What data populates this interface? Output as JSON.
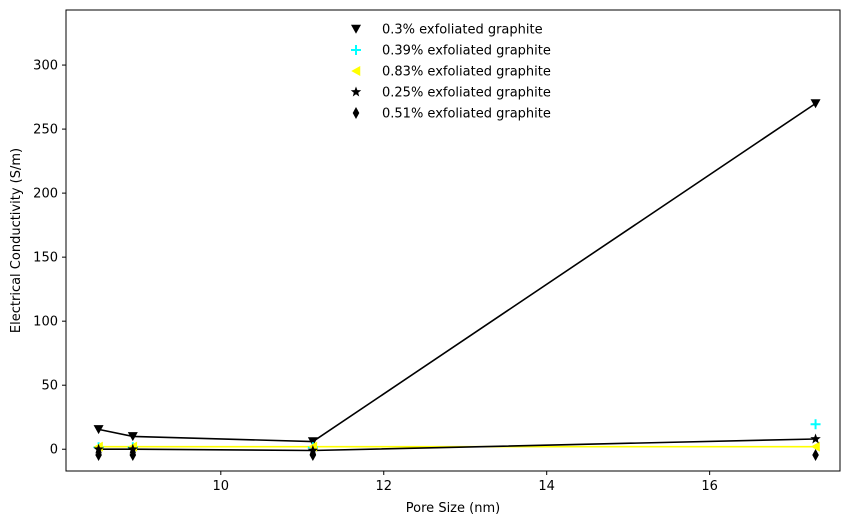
{
  "chart_data": {
    "type": "scatter",
    "xlabel": "Pore Size (nm)",
    "ylabel": "Electrical Conductivity (S/m)",
    "xlim": [
      8.1,
      17.6
    ],
    "ylim": [
      -17,
      343
    ],
    "xticks": [
      10,
      12,
      14,
      16
    ],
    "yticks": [
      0,
      50,
      100,
      150,
      200,
      250,
      300
    ],
    "grid": false,
    "legend": "upper center",
    "series": [
      {
        "name": "0.3% exfoliated graphite",
        "marker": "triangle-down",
        "color": "#000000",
        "points": [
          [
            8.5,
            15.5
          ],
          [
            8.92,
            10
          ],
          [
            11.13,
            6
          ],
          [
            17.3,
            270
          ]
        ],
        "line": [
          [
            8.5,
            15.5
          ],
          [
            8.92,
            10
          ],
          [
            11.13,
            6
          ],
          [
            17.3,
            270
          ]
        ],
        "line_color": "#000000"
      },
      {
        "name": "0.39% exfoliated graphite",
        "marker": "plus",
        "color": "#00ffff",
        "points": [
          [
            8.5,
            1.5
          ],
          [
            8.92,
            1.5
          ],
          [
            11.13,
            1.5
          ],
          [
            17.3,
            19.5
          ]
        ],
        "line": null,
        "line_color": null
      },
      {
        "name": "0.83% exfoliated graphite",
        "marker": "triangle-left",
        "color": "#ffff00",
        "points": [
          [
            8.5,
            2
          ],
          [
            8.92,
            2
          ],
          [
            11.13,
            2
          ],
          [
            17.3,
            2
          ]
        ],
        "line": [
          [
            8.5,
            2
          ],
          [
            8.92,
            2
          ],
          [
            11.13,
            2
          ],
          [
            17.3,
            2
          ]
        ],
        "line_color": "#ffff00"
      },
      {
        "name": "0.25% exfoliated graphite",
        "marker": "star",
        "color": "#000000",
        "points": [
          [
            8.5,
            0
          ],
          [
            8.92,
            0
          ],
          [
            11.13,
            -1
          ],
          [
            17.3,
            8
          ]
        ],
        "line": [
          [
            8.5,
            0
          ],
          [
            8.92,
            0
          ],
          [
            11.13,
            -1
          ],
          [
            17.3,
            8
          ]
        ],
        "line_color": "#000000"
      },
      {
        "name": "0.51% exfoliated graphite",
        "marker": "thin-diamond",
        "color": "#000000",
        "points": [
          [
            8.5,
            -4.5
          ],
          [
            8.92,
            -4.5
          ],
          [
            11.13,
            -4.5
          ],
          [
            17.3,
            -4.5
          ]
        ],
        "line": null,
        "line_color": null
      }
    ]
  }
}
